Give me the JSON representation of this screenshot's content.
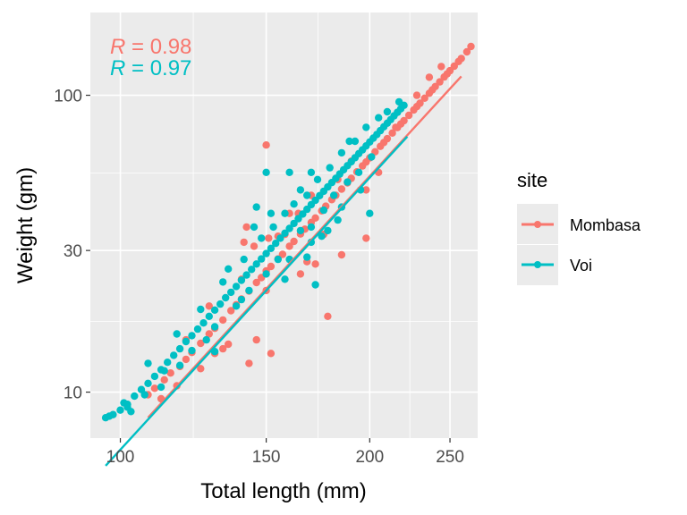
{
  "chart_data": {
    "type": "scatter",
    "xlabel": "Total length (mm)",
    "ylabel": "Weight (gm)",
    "x_scale": "log",
    "y_scale": "log",
    "xlim": [
      92,
      270
    ],
    "ylim": [
      7,
      190
    ],
    "x_ticks": [
      100,
      150,
      200,
      250
    ],
    "x_tick_labels": [
      "100",
      "150",
      "200",
      "250"
    ],
    "y_ticks": [
      10,
      30,
      100
    ],
    "y_tick_labels": [
      "10",
      "30",
      "100"
    ],
    "grid": true,
    "legend": {
      "title": "site",
      "position": "right",
      "entries": [
        "Mombasa",
        "Voi"
      ]
    },
    "annotations": [
      {
        "series": "Mombasa",
        "r_symbol": "R",
        "value_text": " = 0.98"
      },
      {
        "series": "Voi",
        "r_symbol": "R",
        "value_text": " = 0.97"
      }
    ],
    "series": [
      {
        "name": "Mombasa",
        "color": "#F8766D",
        "fit": {
          "x_range": [
            108,
            258
          ],
          "a": 5.4e-06,
          "b": 3.04
        },
        "points_sampled": [
          [
            108,
            9.8
          ],
          [
            110,
            10.3
          ],
          [
            113,
            11.0
          ],
          [
            115,
            11.6
          ],
          [
            118,
            12.2
          ],
          [
            120,
            12.9
          ],
          [
            122,
            13.6
          ],
          [
            125,
            14.6
          ],
          [
            128,
            15.7
          ],
          [
            130,
            16.4
          ],
          [
            133,
            17.5
          ],
          [
            136,
            18.8
          ],
          [
            138,
            19.7
          ],
          [
            140,
            20.6
          ],
          [
            143,
            21.9
          ],
          [
            146,
            23.4
          ],
          [
            148,
            24.3
          ],
          [
            150,
            25.6
          ],
          [
            152,
            26.5
          ],
          [
            155,
            28.1
          ],
          [
            157,
            29.1
          ],
          [
            160,
            31.0
          ],
          [
            162,
            32.2
          ],
          [
            165,
            34.1
          ],
          [
            167,
            35.4
          ],
          [
            170,
            37.3
          ],
          [
            172,
            38.6
          ],
          [
            175,
            40.8
          ],
          [
            177,
            42.3
          ],
          [
            180,
            44.5
          ],
          [
            182,
            46.0
          ],
          [
            185,
            48.3
          ],
          [
            188,
            50.7
          ],
          [
            190,
            52.5
          ],
          [
            193,
            55.2
          ],
          [
            196,
            57.8
          ],
          [
            198,
            59.6
          ],
          [
            200,
            61.5
          ],
          [
            203,
            64.5
          ],
          [
            206,
            67.3
          ],
          [
            208,
            69.3
          ],
          [
            210,
            71.4
          ],
          [
            213,
            74.6
          ],
          [
            216,
            77.8
          ],
          [
            218,
            80.0
          ],
          [
            220,
            82.1
          ],
          [
            223,
            85.6
          ],
          [
            226,
            89.2
          ],
          [
            228,
            91.6
          ],
          [
            230,
            94.0
          ],
          [
            233,
            97.8
          ],
          [
            236,
            101.6
          ],
          [
            238,
            104.3
          ],
          [
            240,
            107.0
          ],
          [
            243,
            110.9
          ],
          [
            246,
            115.2
          ],
          [
            248,
            118.0
          ],
          [
            250,
            121.0
          ],
          [
            253,
            125.3
          ],
          [
            256,
            129.9
          ],
          [
            258,
            133.0
          ],
          [
            262,
            140.0
          ],
          [
            265,
            146.0
          ],
          [
            244,
            125.0
          ],
          [
            236,
            115.0
          ],
          [
            228,
            100.0
          ],
          [
            215,
            78.0
          ],
          [
            205,
            55.0
          ],
          [
            198,
            48.0
          ],
          [
            190,
            60.0
          ],
          [
            183,
            52.0
          ],
          [
            176,
            34.0
          ],
          [
            170,
            46.0
          ],
          [
            164,
            40.0
          ],
          [
            158,
            34.0
          ],
          [
            150,
            22.0
          ],
          [
            145,
            31.0
          ],
          [
            140,
            24.0
          ],
          [
            135,
            14.5
          ],
          [
            128,
            19.5
          ],
          [
            125,
            12.0
          ],
          [
            120,
            15.0
          ],
          [
            112,
            9.5
          ],
          [
            117,
            10.5
          ],
          [
            133,
            14.0
          ],
          [
            150,
            68.0
          ],
          [
            146,
            15.0
          ],
          [
            152,
            13.5
          ],
          [
            151,
            33.0
          ],
          [
            160,
            40.0
          ],
          [
            141,
            32.0
          ],
          [
            165,
            25.0
          ],
          [
            178,
            18.0
          ],
          [
            185,
            29.0
          ],
          [
            198,
            33.0
          ],
          [
            172,
            27.0
          ],
          [
            168,
            27.5
          ],
          [
            130,
            13.5
          ],
          [
            142,
            36.0
          ],
          [
            143,
            12.5
          ],
          [
            155,
            33.5
          ]
        ]
      },
      {
        "name": "Voi",
        "color": "#00BFC4",
        "fit": {
          "x_range": [
            96,
            222
          ],
          "a": 5.2e-06,
          "b": 3.045
        },
        "points_sampled": [
          [
            96,
            8.2
          ],
          [
            97,
            8.3
          ],
          [
            98,
            8.4
          ],
          [
            100,
            8.7
          ],
          [
            102,
            9.1
          ],
          [
            104,
            9.7
          ],
          [
            106,
            10.2
          ],
          [
            108,
            10.7
          ],
          [
            110,
            11.3
          ],
          [
            112,
            11.9
          ],
          [
            114,
            12.6
          ],
          [
            116,
            13.3
          ],
          [
            118,
            14.0
          ],
          [
            120,
            14.8
          ],
          [
            122,
            15.5
          ],
          [
            124,
            16.3
          ],
          [
            126,
            17.1
          ],
          [
            128,
            18.0
          ],
          [
            130,
            18.9
          ],
          [
            132,
            19.8
          ],
          [
            134,
            20.8
          ],
          [
            136,
            21.7
          ],
          [
            138,
            22.7
          ],
          [
            140,
            23.8
          ],
          [
            142,
            24.8
          ],
          [
            144,
            25.9
          ],
          [
            146,
            27.0
          ],
          [
            148,
            28.1
          ],
          [
            150,
            29.3
          ],
          [
            152,
            30.5
          ],
          [
            154,
            31.7
          ],
          [
            156,
            33.0
          ],
          [
            158,
            34.3
          ],
          [
            160,
            35.6
          ],
          [
            162,
            37.0
          ],
          [
            164,
            38.4
          ],
          [
            166,
            39.8
          ],
          [
            168,
            41.3
          ],
          [
            170,
            42.8
          ],
          [
            172,
            44.3
          ],
          [
            174,
            45.9
          ],
          [
            176,
            47.5
          ],
          [
            178,
            49.1
          ],
          [
            180,
            50.8
          ],
          [
            182,
            52.5
          ],
          [
            184,
            54.3
          ],
          [
            186,
            56.1
          ],
          [
            188,
            57.9
          ],
          [
            190,
            59.7
          ],
          [
            192,
            61.6
          ],
          [
            194,
            63.6
          ],
          [
            196,
            65.5
          ],
          [
            198,
            67.5
          ],
          [
            200,
            69.6
          ],
          [
            202,
            71.7
          ],
          [
            204,
            73.8
          ],
          [
            206,
            76.0
          ],
          [
            208,
            78.3
          ],
          [
            210,
            80.5
          ],
          [
            212,
            82.8
          ],
          [
            214,
            85.2
          ],
          [
            216,
            87.6
          ],
          [
            218,
            90.0
          ],
          [
            220,
            92.5
          ],
          [
            101,
            9.2
          ],
          [
            103,
            8.6
          ],
          [
            108,
            12.5
          ],
          [
            112,
            10.4
          ],
          [
            117,
            15.7
          ],
          [
            122,
            13.8
          ],
          [
            125,
            19.0
          ],
          [
            130,
            16.6
          ],
          [
            133,
            23.5
          ],
          [
            138,
            19.5
          ],
          [
            141,
            28.0
          ],
          [
            143,
            22.0
          ],
          [
            148,
            33.0
          ],
          [
            150,
            25.0
          ],
          [
            153,
            36.0
          ],
          [
            155,
            28.0
          ],
          [
            158,
            40.0
          ],
          [
            162,
            43.0
          ],
          [
            165,
            35.0
          ],
          [
            168,
            46.0
          ],
          [
            170,
            36.0
          ],
          [
            173,
            52.0
          ],
          [
            176,
            41.0
          ],
          [
            179,
            57.0
          ],
          [
            181,
            46.0
          ],
          [
            185,
            64.0
          ],
          [
            188,
            51.0
          ],
          [
            192,
            70.0
          ],
          [
            194,
            55.0
          ],
          [
            198,
            78.0
          ],
          [
            201,
            62.0
          ],
          [
            205,
            84.0
          ],
          [
            210,
            88.0
          ],
          [
            172,
            23.0
          ],
          [
            145,
            36.0
          ],
          [
            150,
            55.0
          ],
          [
            160,
            55.0
          ],
          [
            170,
            32.0
          ],
          [
            183,
            38.0
          ],
          [
            200,
            40.0
          ],
          [
            165,
            48.0
          ],
          [
            160,
            28.0
          ],
          [
            152,
            40.0
          ],
          [
            158,
            24.0
          ],
          [
            175,
            33.5
          ],
          [
            168,
            28.5
          ],
          [
            178,
            35.0
          ],
          [
            127,
            15.0
          ],
          [
            135,
            26.0
          ],
          [
            146,
            42.0
          ],
          [
            189,
            70.0
          ],
          [
            217,
            95.0
          ],
          [
            113,
            11.8
          ],
          [
            107,
            9.8
          ],
          [
            118,
            12.3
          ],
          [
            130,
            13.7
          ],
          [
            102,
            8.9
          ],
          [
            140,
            20.5
          ],
          [
            170,
            55.0
          ],
          [
            185,
            42.0
          ],
          [
            195,
            48.0
          ]
        ]
      }
    ]
  }
}
